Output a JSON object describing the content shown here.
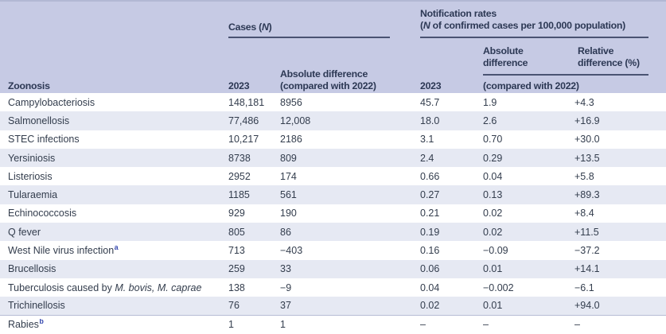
{
  "colors": {
    "header_bg": "#c6cae4",
    "row_shade": "#e6e9f3",
    "rule_line": "#4a5372",
    "header_text": "#2c3854",
    "body_text": "#333d4d",
    "superscript_blue": "#3a4cb0"
  },
  "header": {
    "zoonosis": "Zoonosis",
    "cases": {
      "title_pre": "Cases (",
      "title_n": "N",
      "title_post": ")",
      "year": "2023",
      "diff_line1": "Absolute difference",
      "diff_line2": "(compared with 2022)"
    },
    "rates": {
      "title_line1": "Notification rates",
      "line2_pre": "(",
      "line2_n": "N",
      "line2_post": " of confirmed cases per 100,000 population)",
      "year": "2023",
      "abs_line1": "Absolute",
      "abs_line2": "difference",
      "rel_line1": "Relative",
      "rel_line2": "difference (%)",
      "compared": "(compared with 2022)"
    }
  },
  "rows": [
    {
      "name": "Campylobacteriosis",
      "cases": "148,181",
      "cases_diff": "8956",
      "rate": "45.7",
      "rate_abs": "1.9",
      "rate_rel": "+4.3"
    },
    {
      "name": "Salmonellosis",
      "cases": "77,486",
      "cases_diff": "12,008",
      "rate": "18.0",
      "rate_abs": "2.6",
      "rate_rel": "+16.9"
    },
    {
      "name": "STEC infections",
      "cases": "10,217",
      "cases_diff": "2186",
      "rate": "3.1",
      "rate_abs": "0.70",
      "rate_rel": "+30.0"
    },
    {
      "name": "Yersiniosis",
      "cases": "8738",
      "cases_diff": "809",
      "rate": "2.4",
      "rate_abs": "0.29",
      "rate_rel": "+13.5"
    },
    {
      "name": "Listeriosis",
      "cases": "2952",
      "cases_diff": "174",
      "rate": "0.66",
      "rate_abs": "0.04",
      "rate_rel": "+5.8"
    },
    {
      "name": "Tularaemia",
      "cases": "1185",
      "cases_diff": "561",
      "rate": "0.27",
      "rate_abs": "0.13",
      "rate_rel": "+89.3"
    },
    {
      "name": "Echinococcosis",
      "cases": "929",
      "cases_diff": "190",
      "rate": "0.21",
      "rate_abs": "0.02",
      "rate_rel": "+8.4"
    },
    {
      "name": "Q fever",
      "cases": "805",
      "cases_diff": "86",
      "rate": "0.19",
      "rate_abs": "0.02",
      "rate_rel": "+11.5"
    },
    {
      "name": "West Nile virus infection",
      "sup": "a",
      "cases": "713",
      "cases_diff": "−403",
      "rate": "0.16",
      "rate_abs": "−0.09",
      "rate_rel": "−37.2"
    },
    {
      "name": "Brucellosis",
      "cases": "259",
      "cases_diff": "33",
      "rate": "0.06",
      "rate_abs": "0.01",
      "rate_rel": "+14.1"
    },
    {
      "name": "Tuberculosis caused by ",
      "italic": "M. bovis, M. caprae",
      "cases": "138",
      "cases_diff": "−9",
      "rate": "0.04",
      "rate_abs": "−0.002",
      "rate_rel": "−6.1"
    },
    {
      "name": "Trichinellosis",
      "cases": "76",
      "cases_diff": "37",
      "rate": "0.02",
      "rate_abs": "0.01",
      "rate_rel": "+94.0"
    },
    {
      "name": "Rabies",
      "sup": "b",
      "cases": "1",
      "cases_diff": "1",
      "rate": "–",
      "rate_abs": "–",
      "rate_rel": "–"
    }
  ]
}
